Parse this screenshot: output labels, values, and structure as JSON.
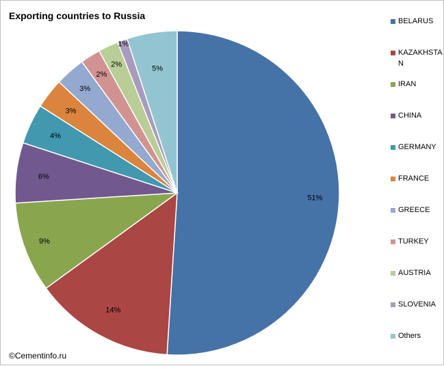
{
  "chart_data": {
    "type": "pie",
    "title": "Exporting countries to Russia",
    "categories": [
      "BELARUS",
      "KAZAKHSTAN",
      "IRAN",
      "CHINA",
      "GERMANY",
      "FRANCE",
      "GREECE",
      "TURKEY",
      "AUSTRIA",
      "SLOVENIA",
      "Others"
    ],
    "values": [
      51,
      14,
      9,
      6,
      4,
      3,
      3,
      2,
      2,
      1,
      5
    ],
    "labels": [
      "51%",
      "14%",
      "9%",
      "6%",
      "4%",
      "3%",
      "3%",
      "2%",
      "2%",
      "1%",
      "5%"
    ],
    "colors": [
      "#4572a7",
      "#aa4643",
      "#89a54e",
      "#71588f",
      "#4198af",
      "#db843d",
      "#93a9cf",
      "#d19392",
      "#b9cd96",
      "#a99bbd",
      "#92c5d1"
    ],
    "legend_position": "right",
    "start": "12 o'clock, clockwise"
  },
  "copyright": "©Cementinfo.ru"
}
